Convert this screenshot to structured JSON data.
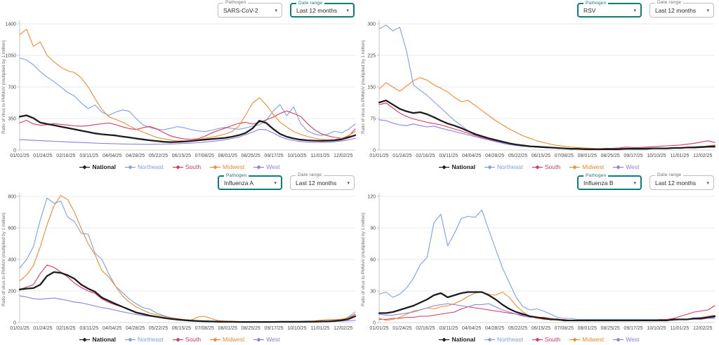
{
  "controls": {
    "pathogen_label": "Pathogen",
    "daterange_label": "Date range"
  },
  "axis": {
    "y_label": "Ratio of virus to PMMoV (multiplied by 1 million)"
  },
  "x_labels": [
    "01/01/25",
    "01/24/25",
    "02/16/25",
    "03/11/25",
    "04/04/25",
    "04/28/25",
    "05/22/25",
    "06/15/25",
    "07/08/25",
    "08/01/25",
    "08/25/25",
    "09/17/25",
    "10/10/25",
    "11/01/25",
    "12/02/25"
  ],
  "legend": [
    "National",
    "Northeast",
    "South",
    "Midwest",
    "West"
  ],
  "colors": {
    "National": "#1c1c1c",
    "Northeast": "#7da0e2",
    "South": "#d5395f",
    "Midwest": "#ef8b33",
    "West": "#8f7ce0",
    "accent": "#0e7c7b",
    "grid": "#e9e9e9",
    "axis_text": "#4a4a4a"
  },
  "chart_data": [
    {
      "type": "line",
      "pathogen": "SARS-CoV-2",
      "date_range": "Last 12 months",
      "focused_control": "daterange",
      "ylim": [
        0,
        1400
      ],
      "yticks": [
        0,
        350,
        700,
        1050,
        1400
      ],
      "series": [
        {
          "name": "Northeast",
          "values": [
            1020,
            1000,
            945,
            870,
            810,
            760,
            700,
            640,
            600,
            520,
            460,
            500,
            420,
            385,
            420,
            445,
            430,
            350,
            280,
            250,
            232,
            225,
            240,
            260,
            248,
            228,
            212,
            205,
            218,
            238,
            252,
            240,
            230,
            246,
            264,
            280,
            330,
            430,
            505,
            380,
            480,
            295,
            215,
            178,
            162,
            175,
            210,
            190,
            230,
            290
          ]
        },
        {
          "name": "South",
          "values": [
            300,
            330,
            290,
            275,
            280,
            293,
            285,
            278,
            268,
            264,
            270,
            282,
            292,
            300,
            283,
            258,
            238,
            228,
            248,
            262,
            235,
            195,
            158,
            138,
            124,
            119,
            126,
            152,
            188,
            218,
            243,
            272,
            296,
            308,
            288,
            308,
            335,
            365,
            405,
            435,
            405,
            375,
            295,
            228,
            182,
            158,
            140,
            130,
            150,
            235
          ]
        },
        {
          "name": "Midwest",
          "values": [
            1280,
            1340,
            1150,
            1200,
            1050,
            980,
            920,
            880,
            860,
            800,
            700,
            570,
            450,
            370,
            340,
            310,
            270,
            230,
            200,
            170,
            140,
            125,
            112,
            102,
            100,
            105,
            115,
            130,
            142,
            158,
            178,
            205,
            265,
            390,
            520,
            580,
            500,
            400,
            310,
            255,
            205,
            175,
            152,
            132,
            118,
            112,
            116,
            130,
            160,
            205
          ]
        },
        {
          "name": "West",
          "values": [
            115,
            112,
            108,
            104,
            100,
            97,
            94,
            90,
            87,
            84,
            80,
            77,
            74,
            72,
            70,
            68,
            66,
            65,
            64,
            64,
            65,
            66,
            68,
            70,
            73,
            77,
            82,
            88,
            95,
            104,
            115,
            128,
            145,
            170,
            200,
            230,
            225,
            190,
            150,
            122,
            105,
            95,
            88,
            85,
            84,
            86,
            92,
            100,
            112,
            130
          ]
        },
        {
          "name": "National",
          "values": [
            370,
            385,
            355,
            305,
            290,
            275,
            260,
            245,
            230,
            215,
            200,
            185,
            175,
            168,
            162,
            150,
            140,
            128,
            118,
            108,
            100,
            92,
            88,
            90,
            95,
            100,
            108,
            115,
            122,
            128,
            135,
            148,
            165,
            190,
            240,
            325,
            300,
            235,
            180,
            148,
            128,
            115,
            108,
            104,
            102,
            104,
            108,
            118,
            140,
            165
          ]
        }
      ]
    },
    {
      "type": "line",
      "pathogen": "RSV",
      "date_range": "Last 12 months",
      "focused_control": "pathogen",
      "ylim": [
        0,
        300
      ],
      "yticks": [
        0,
        75,
        150,
        225,
        300
      ],
      "series": [
        {
          "name": "Northeast",
          "values": [
            288,
            297,
            283,
            292,
            235,
            155,
            142,
            130,
            115,
            100,
            85,
            70,
            58,
            46,
            36,
            30,
            25,
            20,
            16,
            13,
            11,
            9,
            8,
            7,
            6,
            5,
            4,
            4,
            3,
            3,
            3,
            3,
            3,
            3,
            3,
            4,
            4,
            4,
            4,
            5,
            5,
            5,
            5,
            6,
            6,
            7,
            8,
            9,
            7,
            6
          ]
        },
        {
          "name": "South",
          "values": [
            108,
            112,
            100,
            88,
            80,
            74,
            70,
            66,
            63,
            60,
            55,
            50,
            45,
            40,
            35,
            30,
            26,
            22,
            18,
            15,
            12,
            10,
            8,
            7,
            6,
            5,
            4,
            4,
            3,
            3,
            3,
            3,
            3,
            4,
            4,
            5,
            7,
            6,
            6,
            7,
            8,
            9,
            10,
            11,
            12,
            14,
            16,
            19,
            22,
            18
          ]
        },
        {
          "name": "Midwest",
          "values": [
            145,
            160,
            150,
            140,
            152,
            165,
            172,
            166,
            155,
            147,
            138,
            125,
            115,
            118,
            106,
            94,
            82,
            70,
            60,
            50,
            42,
            34,
            28,
            22,
            18,
            14,
            11,
            9,
            7,
            6,
            5,
            4,
            3,
            3,
            3,
            3,
            3,
            3,
            3,
            4,
            4,
            4,
            5,
            5,
            5,
            6,
            7,
            8,
            10,
            12
          ]
        },
        {
          "name": "West",
          "values": [
            72,
            70,
            64,
            60,
            58,
            62,
            58,
            55,
            57,
            52,
            48,
            44,
            40,
            36,
            32,
            28,
            24,
            20,
            17,
            14,
            11,
            9,
            8,
            7,
            6,
            5,
            4,
            4,
            3,
            3,
            2,
            2,
            2,
            2,
            3,
            3,
            3,
            3,
            3,
            4,
            4,
            4,
            4,
            5,
            5,
            5,
            6,
            6,
            7,
            7
          ]
        },
        {
          "name": "National",
          "values": [
            113,
            118,
            108,
            98,
            92,
            88,
            90,
            85,
            78,
            70,
            63,
            58,
            52,
            45,
            38,
            33,
            28,
            24,
            20,
            16,
            13,
            11,
            9,
            8,
            7,
            6,
            5,
            4,
            3,
            3,
            2,
            2,
            2,
            2,
            2,
            2,
            3,
            3,
            3,
            3,
            4,
            4,
            4,
            5,
            5,
            6,
            6,
            7,
            8,
            9
          ]
        }
      ]
    },
    {
      "type": "line",
      "pathogen": "Influenza A",
      "date_range": "Last 12 months",
      "focused_control": "pathogen",
      "ylim": [
        0,
        800
      ],
      "yticks": [
        0,
        200,
        400,
        600,
        800
      ],
      "series": [
        {
          "name": "Northeast",
          "values": [
            345,
            400,
            480,
            650,
            790,
            755,
            770,
            670,
            640,
            565,
            560,
            440,
            400,
            310,
            230,
            190,
            150,
            120,
            95,
            85,
            60,
            45,
            32,
            22,
            15,
            12,
            10,
            8,
            8,
            7,
            6,
            6,
            5,
            5,
            5,
            5,
            5,
            5,
            5,
            5,
            5,
            6,
            6,
            6,
            7,
            8,
            10,
            15,
            35,
            67
          ]
        },
        {
          "name": "South",
          "values": [
            210,
            225,
            240,
            310,
            365,
            350,
            320,
            290,
            250,
            222,
            200,
            185,
            150,
            128,
            112,
            98,
            80,
            62,
            52,
            42,
            35,
            28,
            22,
            18,
            14,
            11,
            9,
            8,
            7,
            6,
            5,
            5,
            4,
            4,
            4,
            4,
            4,
            4,
            5,
            5,
            5,
            5,
            6,
            7,
            8,
            10,
            13,
            18,
            30,
            52
          ]
        },
        {
          "name": "Midwest",
          "values": [
            265,
            300,
            360,
            480,
            620,
            740,
            805,
            780,
            700,
            595,
            500,
            430,
            330,
            290,
            230,
            170,
            130,
            100,
            78,
            60,
            50,
            40,
            32,
            25,
            20,
            15,
            35,
            40,
            25,
            12,
            10,
            8,
            7,
            6,
            6,
            5,
            5,
            5,
            5,
            6,
            6,
            7,
            8,
            10,
            15,
            20,
            18,
            22,
            30,
            42
          ]
        },
        {
          "name": "West",
          "values": [
            170,
            162,
            152,
            148,
            152,
            155,
            148,
            140,
            130,
            125,
            115,
            105,
            95,
            88,
            78,
            68,
            60,
            52,
            45,
            40,
            35,
            30,
            26,
            22,
            18,
            15,
            12,
            10,
            9,
            8,
            7,
            6,
            5,
            5,
            5,
            5,
            5,
            5,
            5,
            5,
            5,
            5,
            6,
            6,
            6,
            7,
            8,
            9,
            11,
            14
          ]
        },
        {
          "name": "National",
          "values": [
            210,
            215,
            218,
            240,
            295,
            320,
            315,
            300,
            278,
            240,
            215,
            195,
            158,
            138,
            118,
            100,
            82,
            64,
            54,
            44,
            37,
            30,
            24,
            19,
            15,
            12,
            10,
            8,
            7,
            6,
            5,
            5,
            4,
            4,
            4,
            4,
            4,
            4,
            5,
            5,
            5,
            5,
            6,
            6,
            7,
            8,
            10,
            14,
            22,
            40
          ]
        }
      ]
    },
    {
      "type": "line",
      "pathogen": "Influenza B",
      "date_range": "Last 12 months",
      "focused_control": "pathogen",
      "ylim": [
        0,
        120
      ],
      "yticks": [
        0,
        30,
        60,
        90,
        120
      ],
      "series": [
        {
          "name": "Northeast",
          "values": [
            27,
            29,
            24,
            27,
            33,
            42,
            55,
            62,
            95,
            103,
            73,
            85,
            99,
            101,
            100,
            107,
            88,
            70,
            52,
            38,
            24,
            15,
            12,
            13,
            11,
            8,
            5,
            4,
            4,
            3,
            3,
            3,
            3,
            3,
            3,
            3,
            3,
            3,
            3,
            3,
            3,
            3,
            3,
            3,
            3,
            3,
            4,
            4,
            4,
            5
          ]
        },
        {
          "name": "South",
          "values": [
            3,
            3,
            4,
            4,
            5,
            5,
            6,
            6,
            7,
            8,
            9,
            10,
            13,
            15,
            14,
            13,
            12,
            11,
            10,
            9,
            8,
            7,
            6,
            5,
            5,
            4,
            3,
            3,
            2,
            2,
            2,
            2,
            2,
            2,
            2,
            2,
            2,
            2,
            2,
            2,
            2,
            3,
            3,
            4,
            6,
            8,
            10,
            11,
            12,
            16
          ]
        },
        {
          "name": "Midwest",
          "values": [
            4,
            2,
            3,
            5,
            8,
            11,
            12,
            14,
            13,
            15,
            16,
            18,
            21,
            25,
            28,
            29,
            27,
            26,
            29,
            24,
            16,
            10,
            6,
            4,
            3,
            3,
            2,
            2,
            2,
            2,
            2,
            2,
            2,
            2,
            2,
            2,
            2,
            2,
            2,
            2,
            2,
            2,
            2,
            3,
            3,
            3,
            4,
            5,
            6,
            7
          ]
        },
        {
          "name": "West",
          "values": [
            8,
            7,
            7,
            8,
            9,
            10,
            12,
            14,
            16,
            17,
            18,
            17,
            16,
            15,
            17,
            17,
            18,
            15,
            12,
            10,
            8,
            6,
            5,
            5,
            4,
            3,
            3,
            2,
            2,
            2,
            2,
            2,
            2,
            2,
            2,
            2,
            2,
            2,
            2,
            2,
            2,
            2,
            2,
            2,
            3,
            3,
            3,
            3,
            4,
            4
          ]
        },
        {
          "name": "National",
          "values": [
            9,
            9,
            10,
            12,
            14,
            16,
            19,
            22,
            26,
            28,
            24,
            26,
            28,
            29,
            29,
            29,
            26,
            22,
            17,
            13,
            10,
            8,
            6,
            5,
            4,
            3,
            3,
            2,
            2,
            2,
            2,
            2,
            2,
            2,
            2,
            2,
            2,
            2,
            2,
            2,
            2,
            2,
            2,
            3,
            3,
            3,
            4,
            4,
            5,
            6
          ]
        }
      ]
    }
  ]
}
